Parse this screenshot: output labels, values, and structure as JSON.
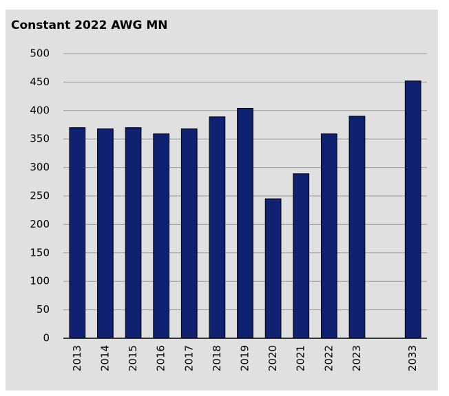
{
  "chart_data": {
    "type": "bar",
    "title": "Constant 2022 AWG MN",
    "categories": [
      "2013",
      "2014",
      "2015",
      "2016",
      "2017",
      "2018",
      "2019",
      "2020",
      "2021",
      "2022",
      "2023",
      null,
      "2033"
    ],
    "values": [
      370,
      368,
      370,
      359,
      368,
      389,
      404,
      245,
      289,
      359,
      390,
      null,
      452
    ],
    "color": "#0f2170",
    "ylim": [
      0,
      500
    ],
    "yticks": [
      0,
      50,
      100,
      150,
      200,
      250,
      300,
      350,
      400,
      450,
      500
    ],
    "grid": true
  }
}
